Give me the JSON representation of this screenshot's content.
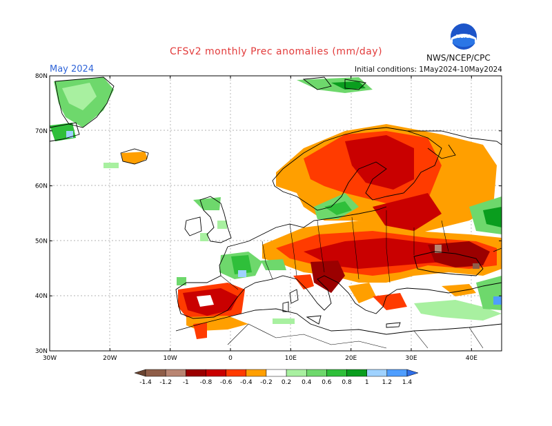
{
  "header": {
    "title": "CFSv2 monthly Prec anomalies (mm/day)",
    "month": "May 2024",
    "initial_conditions": "Initial conditions: 1May2024-10May2024",
    "agency": "NWS/NCEP/CPC",
    "logo_text": "NOAA"
  },
  "map": {
    "lat_labels": [
      "80N",
      "70N",
      "60N",
      "50N",
      "40N",
      "30N"
    ],
    "lon_labels": [
      "30W",
      "20W",
      "10W",
      "0",
      "10E",
      "20E",
      "30E",
      "40E"
    ],
    "lat_values": [
      80,
      70,
      60,
      50,
      40,
      30
    ],
    "lon_values": [
      -30,
      -20,
      -10,
      0,
      10,
      20,
      30,
      40
    ]
  },
  "legend": {
    "labels": [
      "-1.4",
      "-1.2",
      "-1",
      "-0.8",
      "-0.6",
      "-0.4",
      "-0.2",
      "0.2",
      "0.4",
      "0.6",
      "0.8",
      "1",
      "1.2",
      "1.4"
    ],
    "colors": [
      "#6b4532",
      "#8f5d48",
      "#b98572",
      "#9b0000",
      "#c90000",
      "#ff3b00",
      "#ff9f00",
      "#ffffff",
      "#a8f0a0",
      "#6ed86c",
      "#2fbf3a",
      "#0a9d1e",
      "#9fd2ff",
      "#4f9eff",
      "#2f6fe8"
    ]
  },
  "colors": {
    "title": "#e23b3b",
    "month": "#2f64d8"
  }
}
